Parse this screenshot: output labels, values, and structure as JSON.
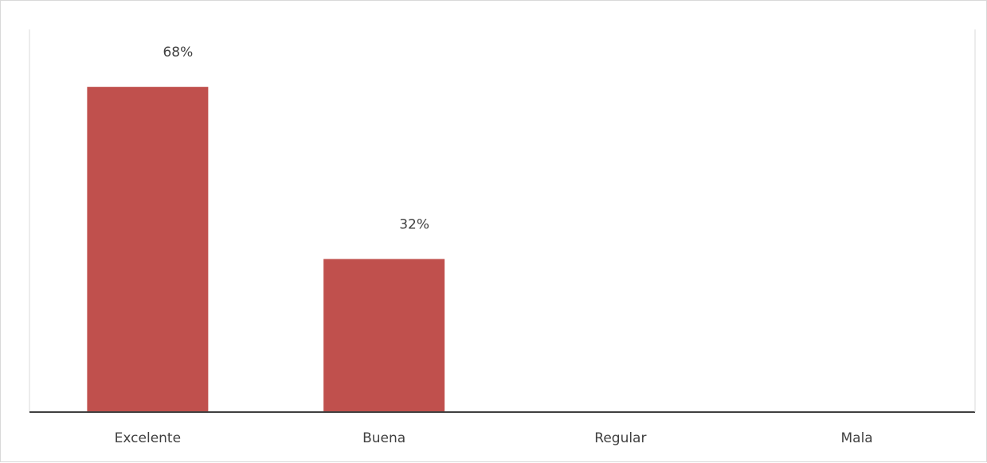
{
  "chart_data": {
    "type": "bar",
    "categories": [
      "Excelente",
      "Buena",
      "Regular",
      "Mala"
    ],
    "values": [
      68,
      32,
      0,
      0
    ],
    "data_labels": [
      "68%",
      "32%",
      "",
      ""
    ],
    "ylim": [
      0,
      80
    ],
    "bar_color": "#C0504D",
    "axis_color": "#404040",
    "grid": false,
    "legend": "none"
  }
}
